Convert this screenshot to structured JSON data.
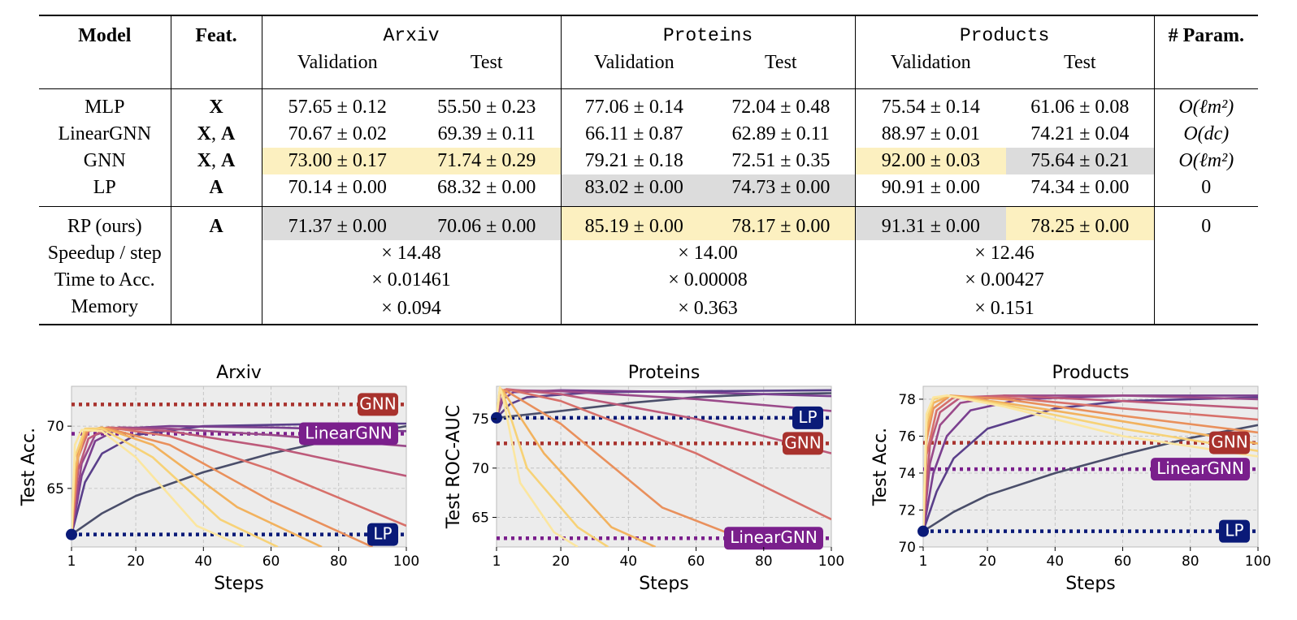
{
  "table": {
    "header": {
      "model": "Model",
      "feat": "Feat.",
      "params": "# Param.",
      "datasets": [
        "Arxiv",
        "Proteins",
        "Products"
      ],
      "validation": "Validation",
      "test": "Test"
    },
    "rows": [
      {
        "model": "MLP",
        "feat": "X",
        "cells": [
          "57.65 ± 0.12",
          "55.50 ± 0.23",
          "77.06 ± 0.14",
          "72.04 ± 0.48",
          "75.54 ± 0.14",
          "61.06 ± 0.08"
        ],
        "param": "O(ℓm²)",
        "highlight": [
          "",
          "",
          "",
          "",
          "",
          ""
        ]
      },
      {
        "model": "LinearGNN",
        "feat": "X, A",
        "cells": [
          "70.67 ± 0.02",
          "69.39 ± 0.11",
          "66.11 ± 0.87",
          "62.89 ± 0.11",
          "88.97 ± 0.01",
          "74.21 ± 0.04"
        ],
        "param": "O(dc)",
        "highlight": [
          "",
          "",
          "",
          "",
          "",
          ""
        ]
      },
      {
        "model": "GNN",
        "feat": "X, A",
        "cells": [
          "73.00 ± 0.17",
          "71.74 ± 0.29",
          "79.21 ± 0.18",
          "72.51 ± 0.35",
          "92.00 ± 0.03",
          "75.64 ± 0.21"
        ],
        "param": "O(ℓm²)",
        "highlight": [
          "yellow",
          "yellow",
          "",
          "",
          "yellow",
          "gray"
        ]
      },
      {
        "model": "LP",
        "feat": "A",
        "cells": [
          "70.14 ± 0.00",
          "68.32 ± 0.00",
          "83.02 ± 0.00",
          "74.73 ± 0.00",
          "90.91 ± 0.00",
          "74.34 ± 0.00"
        ],
        "param": "0",
        "highlight": [
          "",
          "",
          "gray",
          "gray",
          "",
          ""
        ]
      }
    ],
    "rp_row": {
      "model": "RP (ours)",
      "feat": "A",
      "cells": [
        "71.37 ± 0.00",
        "70.06 ± 0.00",
        "85.19 ± 0.00",
        "78.17 ± 0.00",
        "91.31 ± 0.00",
        "78.25 ± 0.00"
      ],
      "param": "0",
      "highlight": [
        "gray",
        "gray",
        "yellow",
        "yellow",
        "gray",
        "yellow"
      ]
    },
    "extra_rows": [
      {
        "label": "Speedup / step",
        "values": [
          "× 14.48",
          "× 14.00",
          "× 12.46"
        ]
      },
      {
        "label": "Time to Acc.",
        "values": [
          "× 0.01461",
          "× 0.00008",
          "× 0.00427"
        ]
      },
      {
        "label": "Memory",
        "values": [
          "× 0.094",
          "× 0.363",
          "× 0.151"
        ]
      }
    ]
  },
  "colors": {
    "GNN": "#a8322d",
    "LinearGNN": "#7a1f8c",
    "LP": "#0a1a78",
    "highlight_yellow": "#fcf0c0",
    "highlight_gray": "#dcdcdc",
    "plot_bg": "#ececec",
    "curve_palette": [
      "#4a4e6a",
      "#5a3f8a",
      "#7a3f8f",
      "#9a4a8a",
      "#bd5a7a",
      "#d7706a",
      "#e9905c",
      "#f2b25e",
      "#f7d277",
      "#fbe6a0"
    ]
  },
  "chart_data": [
    {
      "type": "line",
      "title": "Arxiv",
      "xlabel": "Steps",
      "ylabel": "Test Acc.",
      "xlim": [
        1,
        100
      ],
      "ylim": [
        60.3,
        73.2
      ],
      "xticks": [
        1,
        20,
        40,
        60,
        80,
        100
      ],
      "yticks": [
        65,
        70
      ],
      "grid": true,
      "references": [
        {
          "name": "GNN",
          "y": 71.74
        },
        {
          "name": "LinearGNN",
          "y": 69.39
        },
        {
          "name": "LP",
          "y": 61.3
        }
      ],
      "start": {
        "x": 1,
        "y": 61.3
      },
      "curves": [
        [
          [
            1,
            61.3
          ],
          [
            10,
            63.0
          ],
          [
            20,
            64.4
          ],
          [
            40,
            66.3
          ],
          [
            60,
            67.8
          ],
          [
            80,
            69.0
          ],
          [
            100,
            70.0
          ]
        ],
        [
          [
            1,
            61.3
          ],
          [
            5,
            65.5
          ],
          [
            10,
            67.8
          ],
          [
            20,
            69.3
          ],
          [
            40,
            70.0
          ],
          [
            60,
            70.1
          ],
          [
            80,
            70.2
          ],
          [
            100,
            70.2
          ]
        ],
        [
          [
            1,
            61.3
          ],
          [
            4,
            66.0
          ],
          [
            8,
            68.8
          ],
          [
            15,
            69.8
          ],
          [
            30,
            70.0
          ],
          [
            60,
            69.9
          ],
          [
            100,
            69.6
          ]
        ],
        [
          [
            1,
            61.3
          ],
          [
            4,
            67.0
          ],
          [
            8,
            69.3
          ],
          [
            15,
            69.9
          ],
          [
            30,
            69.8
          ],
          [
            60,
            69.3
          ],
          [
            100,
            68.4
          ]
        ],
        [
          [
            1,
            61.3
          ],
          [
            3,
            66.5
          ],
          [
            6,
            69.0
          ],
          [
            12,
            69.9
          ],
          [
            30,
            69.6
          ],
          [
            60,
            68.3
          ],
          [
            100,
            66.0
          ]
        ],
        [
          [
            1,
            61.3
          ],
          [
            3,
            67.5
          ],
          [
            6,
            69.6
          ],
          [
            12,
            69.9
          ],
          [
            30,
            69.2
          ],
          [
            60,
            66.5
          ],
          [
            100,
            62.0
          ]
        ],
        [
          [
            1,
            61.3
          ],
          [
            3,
            68.2
          ],
          [
            6,
            69.8
          ],
          [
            12,
            69.8
          ],
          [
            30,
            68.5
          ],
          [
            60,
            64.0
          ],
          [
            90,
            60.3
          ]
        ],
        [
          [
            1,
            61.3
          ],
          [
            2,
            66.5
          ],
          [
            5,
            69.6
          ],
          [
            10,
            69.9
          ],
          [
            25,
            68.5
          ],
          [
            50,
            63.5
          ],
          [
            75,
            60.3
          ]
        ],
        [
          [
            1,
            61.3
          ],
          [
            2,
            67.5
          ],
          [
            5,
            69.8
          ],
          [
            10,
            69.8
          ],
          [
            25,
            67.5
          ],
          [
            45,
            62.5
          ],
          [
            62,
            60.3
          ]
        ],
        [
          [
            1,
            61.3
          ],
          [
            2,
            68.5
          ],
          [
            4,
            69.7
          ],
          [
            10,
            69.6
          ],
          [
            20,
            67.5
          ],
          [
            38,
            62.0
          ],
          [
            52,
            60.3
          ]
        ]
      ]
    },
    {
      "type": "line",
      "title": "Proteins",
      "xlabel": "Steps",
      "ylabel": "Test ROC-AUC",
      "xlim": [
        1,
        100
      ],
      "ylim": [
        62.0,
        78.3
      ],
      "xticks": [
        1,
        20,
        40,
        60,
        80,
        100
      ],
      "yticks": [
        65,
        70,
        75
      ],
      "grid": true,
      "references": [
        {
          "name": "LP",
          "y": 75.1
        },
        {
          "name": "GNN",
          "y": 72.51
        },
        {
          "name": "LinearGNN",
          "y": 62.89
        }
      ],
      "start": {
        "x": 1,
        "y": 75.1
      },
      "curves": [
        [
          [
            1,
            75.1
          ],
          [
            20,
            75.8
          ],
          [
            40,
            76.6
          ],
          [
            60,
            77.2
          ],
          [
            80,
            77.5
          ],
          [
            100,
            77.6
          ]
        ],
        [
          [
            1,
            75.1
          ],
          [
            5,
            76.5
          ],
          [
            10,
            77.2
          ],
          [
            30,
            77.7
          ],
          [
            60,
            77.8
          ],
          [
            100,
            77.9
          ]
        ],
        [
          [
            1,
            75.1
          ],
          [
            3,
            77.0
          ],
          [
            6,
            77.7
          ],
          [
            20,
            77.9
          ],
          [
            60,
            77.7
          ],
          [
            100,
            77.3
          ]
        ],
        [
          [
            1,
            75.1
          ],
          [
            3,
            77.5
          ],
          [
            5,
            77.9
          ],
          [
            20,
            77.8
          ],
          [
            60,
            77.0
          ],
          [
            100,
            75.8
          ]
        ],
        [
          [
            1,
            75.1
          ],
          [
            2,
            77.4
          ],
          [
            4,
            78.0
          ],
          [
            20,
            77.5
          ],
          [
            60,
            75.0
          ],
          [
            100,
            71.5
          ]
        ],
        [
          [
            1,
            75.1
          ],
          [
            2,
            77.8
          ],
          [
            4,
            78.0
          ],
          [
            20,
            76.8
          ],
          [
            60,
            71.5
          ],
          [
            100,
            64.8
          ]
        ],
        [
          [
            1,
            75.1
          ],
          [
            2,
            78.0
          ],
          [
            4,
            77.8
          ],
          [
            20,
            74.5
          ],
          [
            50,
            66.0
          ],
          [
            80,
            62.0
          ]
        ],
        [
          [
            1,
            75.1
          ],
          [
            2,
            78.1
          ],
          [
            3,
            77.8
          ],
          [
            15,
            71.5
          ],
          [
            35,
            64.0
          ],
          [
            48,
            62.0
          ]
        ],
        [
          [
            1,
            75.1
          ],
          [
            2,
            78.1
          ],
          [
            3,
            77.5
          ],
          [
            10,
            70.0
          ],
          [
            25,
            64.0
          ],
          [
            34,
            62.0
          ]
        ],
        [
          [
            1,
            75.1
          ],
          [
            2,
            78.2
          ],
          [
            3,
            77.0
          ],
          [
            8,
            68.5
          ],
          [
            18,
            63.5
          ],
          [
            25,
            62.0
          ]
        ]
      ]
    },
    {
      "type": "line",
      "title": "Products",
      "xlabel": "Steps",
      "ylabel": "Test Acc.",
      "xlim": [
        1,
        100
      ],
      "ylim": [
        70.0,
        78.7
      ],
      "xticks": [
        1,
        20,
        40,
        60,
        80,
        100
      ],
      "yticks": [
        70,
        72,
        74,
        76,
        78
      ],
      "grid": true,
      "references": [
        {
          "name": "GNN",
          "y": 75.64
        },
        {
          "name": "LinearGNN",
          "y": 74.21
        },
        {
          "name": "LP",
          "y": 70.85
        }
      ],
      "start": {
        "x": 1,
        "y": 70.85
      },
      "curves": [
        [
          [
            1,
            70.85
          ],
          [
            10,
            71.9
          ],
          [
            20,
            72.8
          ],
          [
            40,
            74.0
          ],
          [
            60,
            75.0
          ],
          [
            80,
            75.9
          ],
          [
            100,
            76.6
          ]
        ],
        [
          [
            1,
            70.85
          ],
          [
            5,
            73.0
          ],
          [
            10,
            74.8
          ],
          [
            20,
            76.4
          ],
          [
            40,
            77.5
          ],
          [
            60,
            77.9
          ],
          [
            100,
            78.1
          ]
        ],
        [
          [
            1,
            70.85
          ],
          [
            4,
            74.0
          ],
          [
            8,
            76.0
          ],
          [
            15,
            77.4
          ],
          [
            30,
            78.0
          ],
          [
            60,
            78.2
          ],
          [
            100,
            78.2
          ]
        ],
        [
          [
            1,
            70.85
          ],
          [
            3,
            74.5
          ],
          [
            6,
            76.6
          ],
          [
            12,
            77.8
          ],
          [
            25,
            78.2
          ],
          [
            60,
            78.2
          ],
          [
            100,
            78.0
          ]
        ],
        [
          [
            1,
            70.85
          ],
          [
            3,
            75.5
          ],
          [
            6,
            77.3
          ],
          [
            12,
            78.1
          ],
          [
            25,
            78.2
          ],
          [
            60,
            77.9
          ],
          [
            100,
            77.5
          ]
        ],
        [
          [
            1,
            70.85
          ],
          [
            2,
            75.0
          ],
          [
            5,
            77.4
          ],
          [
            10,
            78.1
          ],
          [
            25,
            78.1
          ],
          [
            60,
            77.5
          ],
          [
            100,
            76.9
          ]
        ],
        [
          [
            1,
            70.85
          ],
          [
            2,
            75.8
          ],
          [
            4,
            77.5
          ],
          [
            9,
            78.2
          ],
          [
            25,
            78.0
          ],
          [
            60,
            77.1
          ],
          [
            100,
            76.2
          ]
        ],
        [
          [
            1,
            70.85
          ],
          [
            2,
            76.3
          ],
          [
            4,
            77.8
          ],
          [
            9,
            78.2
          ],
          [
            25,
            77.8
          ],
          [
            60,
            76.8
          ],
          [
            100,
            75.6
          ]
        ],
        [
          [
            1,
            70.85
          ],
          [
            2,
            76.8
          ],
          [
            4,
            78.0
          ],
          [
            8,
            78.2
          ],
          [
            25,
            77.7
          ],
          [
            60,
            76.4
          ],
          [
            100,
            75.2
          ]
        ],
        [
          [
            1,
            70.85
          ],
          [
            2,
            77.2
          ],
          [
            4,
            78.1
          ],
          [
            8,
            78.2
          ],
          [
            25,
            77.6
          ],
          [
            60,
            76.0
          ],
          [
            100,
            74.9
          ]
        ]
      ]
    }
  ]
}
